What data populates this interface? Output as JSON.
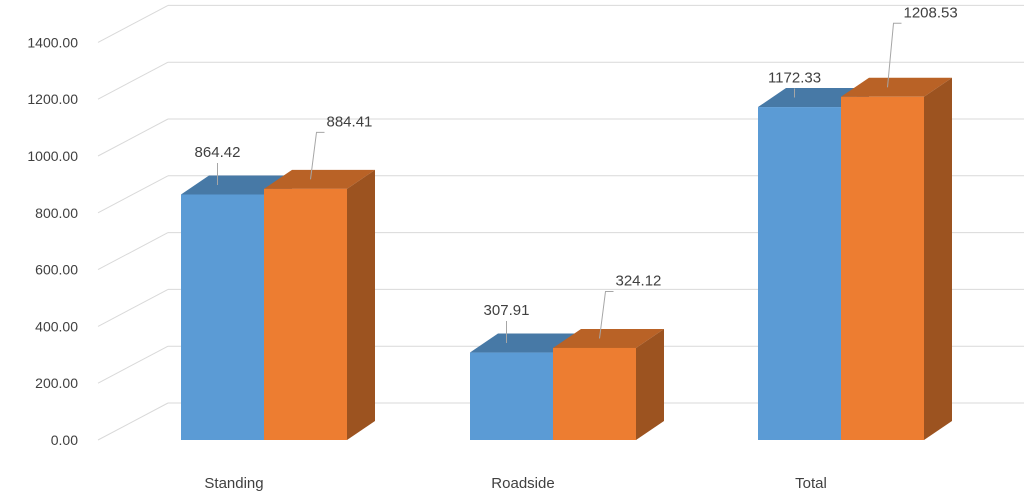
{
  "chart_data": {
    "type": "bar",
    "title": "",
    "xlabel": "",
    "ylabel": "",
    "categories": [
      "Standing",
      "Roadside",
      "Total"
    ],
    "series": [
      {
        "values": [
          864.42,
          307.91,
          1172.33
        ],
        "color": "#5B9BD5"
      },
      {
        "values": [
          884.41,
          324.12,
          1208.53
        ],
        "color": "#ED7D31"
      }
    ],
    "data_labels": [
      [
        "864.42",
        "307.91",
        "1172.33"
      ],
      [
        "884.41",
        "324.12",
        "1208.53"
      ]
    ],
    "ylim": [
      0,
      1400
    ],
    "yticks": [
      "0.00",
      "200.00",
      "400.00",
      "600.00",
      "800.00",
      "1000.00",
      "1200.00",
      "1400.00"
    ],
    "grid": true,
    "legend": "none",
    "style": "3d-clustered-column"
  }
}
